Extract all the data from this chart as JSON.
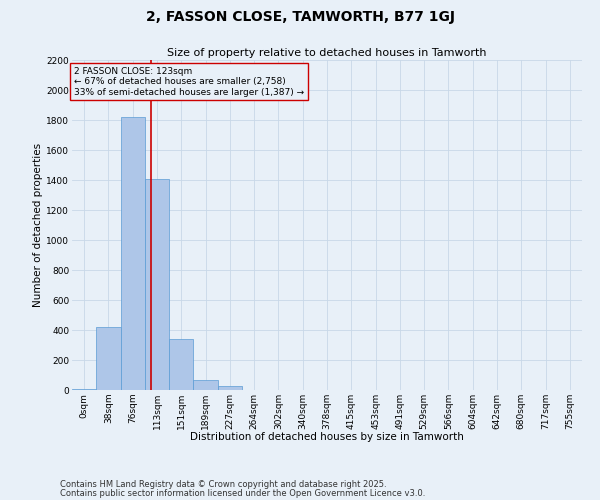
{
  "title": "2, FASSON CLOSE, TAMWORTH, B77 1GJ",
  "subtitle": "Size of property relative to detached houses in Tamworth",
  "xlabel": "Distribution of detached houses by size in Tamworth",
  "ylabel": "Number of detached properties",
  "bin_labels": [
    "0sqm",
    "38sqm",
    "76sqm",
    "113sqm",
    "151sqm",
    "189sqm",
    "227sqm",
    "264sqm",
    "302sqm",
    "340sqm",
    "378sqm",
    "415sqm",
    "453sqm",
    "491sqm",
    "529sqm",
    "566sqm",
    "604sqm",
    "642sqm",
    "680sqm",
    "717sqm",
    "755sqm"
  ],
  "bar_heights": [
    10,
    420,
    1820,
    1410,
    340,
    70,
    30,
    0,
    0,
    0,
    0,
    0,
    0,
    0,
    0,
    0,
    0,
    0,
    0,
    0,
    0
  ],
  "bar_color": "#aec6e8",
  "bar_edge_color": "#5a9bd4",
  "grid_color": "#c8d8e8",
  "background_color": "#e8f0f8",
  "vline_color": "#cc0000",
  "annotation_text": "2 FASSON CLOSE: 123sqm\n← 67% of detached houses are smaller (2,758)\n33% of semi-detached houses are larger (1,387) →",
  "annotation_box_color": "#cc0000",
  "ylim": [
    0,
    2200
  ],
  "yticks": [
    0,
    200,
    400,
    600,
    800,
    1000,
    1200,
    1400,
    1600,
    1800,
    2000,
    2200
  ],
  "footnote1": "Contains HM Land Registry data © Crown copyright and database right 2025.",
  "footnote2": "Contains public sector information licensed under the Open Government Licence v3.0.",
  "title_fontsize": 10,
  "subtitle_fontsize": 8,
  "axis_label_fontsize": 7.5,
  "tick_fontsize": 6.5,
  "annotation_fontsize": 6.5,
  "footnote_fontsize": 6.0
}
